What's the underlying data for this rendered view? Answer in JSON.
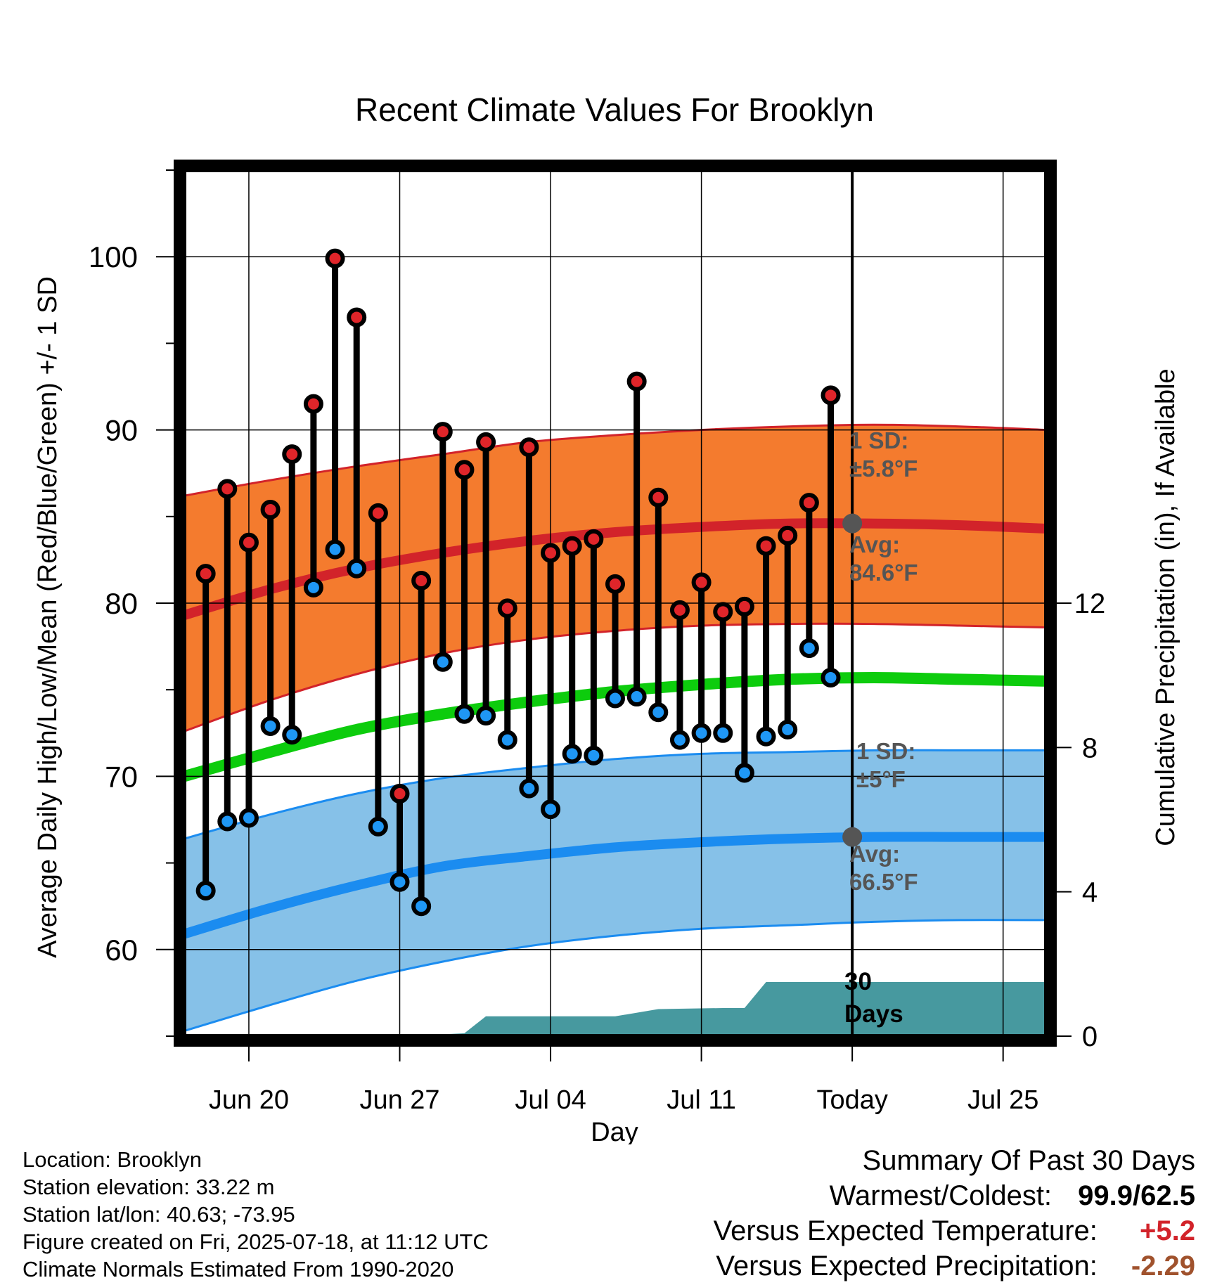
{
  "chart_data": {
    "type": "line",
    "title": "Recent Climate Values For Brooklyn",
    "xlabel": "Day",
    "ylabel": "Average Daily High/Low/Mean (Red/Blue/Green) +/- 1 SD",
    "ylabel_right": "Cumulative Precipitation (in), If Available",
    "ylim": [
      55,
      105
    ],
    "ylim_right": [
      0,
      24
    ],
    "xlim": [
      "2025-06-17",
      "2025-07-27"
    ],
    "yticks": [
      60,
      70,
      80,
      90,
      100
    ],
    "yticks_right": [
      0,
      4,
      8,
      12
    ],
    "xticks": [
      {
        "date": "2025-06-20",
        "label": "Jun 20"
      },
      {
        "date": "2025-06-27",
        "label": "Jun 27"
      },
      {
        "date": "2025-07-04",
        "label": "Jul 04"
      },
      {
        "date": "2025-07-11",
        "label": "Jul 11"
      },
      {
        "date": "2025-07-18",
        "label": "Today"
      },
      {
        "date": "2025-07-25",
        "label": "Jul 25"
      }
    ],
    "grid": true,
    "today": "2025-07-18",
    "observed": {
      "dates": [
        "2025-06-18",
        "2025-06-19",
        "2025-06-20",
        "2025-06-21",
        "2025-06-22",
        "2025-06-23",
        "2025-06-24",
        "2025-06-25",
        "2025-06-26",
        "2025-06-27",
        "2025-06-28",
        "2025-06-29",
        "2025-06-30",
        "2025-07-01",
        "2025-07-02",
        "2025-07-03",
        "2025-07-04",
        "2025-07-05",
        "2025-07-06",
        "2025-07-07",
        "2025-07-08",
        "2025-07-09",
        "2025-07-10",
        "2025-07-11",
        "2025-07-12",
        "2025-07-13",
        "2025-07-14",
        "2025-07-15",
        "2025-07-16",
        "2025-07-17"
      ],
      "highs": [
        81.7,
        86.6,
        83.5,
        85.4,
        88.6,
        91.5,
        99.9,
        96.5,
        85.2,
        69.0,
        81.3,
        89.9,
        87.7,
        89.3,
        79.7,
        89.0,
        82.9,
        83.3,
        83.7,
        81.1,
        92.8,
        86.1,
        79.6,
        81.2,
        79.5,
        79.8,
        83.3,
        83.9,
        85.8,
        92.0
      ],
      "lows": [
        63.4,
        67.4,
        67.6,
        72.9,
        72.4,
        80.9,
        83.1,
        82.0,
        67.1,
        63.9,
        62.5,
        76.6,
        73.6,
        73.5,
        72.1,
        69.3,
        68.1,
        71.3,
        71.2,
        74.5,
        74.6,
        73.7,
        72.1,
        72.5,
        72.5,
        70.2,
        72.3,
        72.7,
        77.4,
        75.7
      ],
      "high_color": "#e0252a",
      "low_color": "#1f97f5"
    },
    "normals": {
      "dates": [
        "2025-06-17",
        "2025-06-21",
        "2025-06-25",
        "2025-06-29",
        "2025-07-03",
        "2025-07-07",
        "2025-07-11",
        "2025-07-15",
        "2025-07-19",
        "2025-07-23",
        "2025-07-27"
      ],
      "high_avg": [
        79.3,
        80.8,
        82.0,
        82.9,
        83.6,
        84.1,
        84.4,
        84.6,
        84.6,
        84.5,
        84.3
      ],
      "high_upper": [
        86.2,
        87.1,
        87.9,
        88.6,
        89.3,
        89.7,
        90.0,
        90.2,
        90.3,
        90.2,
        90.0
      ],
      "high_lower": [
        72.6,
        74.4,
        75.9,
        77.1,
        77.9,
        78.4,
        78.7,
        78.8,
        78.8,
        78.7,
        78.6
      ],
      "mean": [
        70.0,
        71.4,
        72.7,
        73.6,
        74.3,
        74.9,
        75.3,
        75.6,
        75.7,
        75.6,
        75.5
      ],
      "low_avg": [
        60.9,
        62.4,
        63.7,
        64.8,
        65.4,
        65.9,
        66.2,
        66.4,
        66.5,
        66.5,
        66.5
      ],
      "low_upper": [
        66.4,
        67.8,
        69.0,
        69.9,
        70.5,
        71.0,
        71.3,
        71.4,
        71.5,
        71.5,
        71.5
      ],
      "low_lower": [
        55.3,
        56.8,
        58.2,
        59.3,
        60.2,
        60.8,
        61.2,
        61.4,
        61.6,
        61.7,
        61.7
      ],
      "high_band_color": "#f47b2e",
      "high_line_color": "#d2232a",
      "mean_color": "#0dcc0d",
      "low_band_color": "#86c1e8",
      "low_line_color": "#1b8cf0"
    },
    "precipitation": {
      "dates": [
        "2025-06-17",
        "2025-06-27",
        "2025-06-28",
        "2025-06-29",
        "2025-06-30",
        "2025-07-01",
        "2025-07-02",
        "2025-07-07",
        "2025-07-09",
        "2025-07-12",
        "2025-07-13",
        "2025-07-14",
        "2025-07-27"
      ],
      "cumulative": [
        0.0,
        0.0,
        0.05,
        0.05,
        0.08,
        0.55,
        0.55,
        0.55,
        0.75,
        0.78,
        0.78,
        1.5,
        1.5
      ],
      "color": "#47999f",
      "label": [
        "30",
        "Days"
      ]
    },
    "annotations": {
      "high_sd": [
        "1 SD:",
        "±5.8°F"
      ],
      "high_avg": [
        "Avg:",
        "84.6°F"
      ],
      "low_sd": [
        "1 SD:",
        "±5°F"
      ],
      "low_avg": [
        "Avg:",
        "66.5°F"
      ],
      "color": "#555555"
    }
  },
  "metadata_lines": [
    "Location: Brooklyn",
    "Station elevation: 33.22 m",
    "Station lat/lon: 40.63; -73.95",
    "Figure created on Fri, 2025-07-18, at 11:12 UTC",
    "Climate Normals Estimated From 1990-2020"
  ],
  "summary": {
    "title": "Summary Of Past 30 Days",
    "warmest_coldest_label": "Warmest/Coldest:",
    "warmest_coldest_value": "99.9/62.5",
    "temp_label": "Versus Expected Temperature:",
    "temp_value": "+5.2",
    "temp_color": "#d2232a",
    "precip_label": "Versus Expected Precipitation:",
    "precip_value": "-2.29",
    "precip_color": "#a0522d"
  }
}
